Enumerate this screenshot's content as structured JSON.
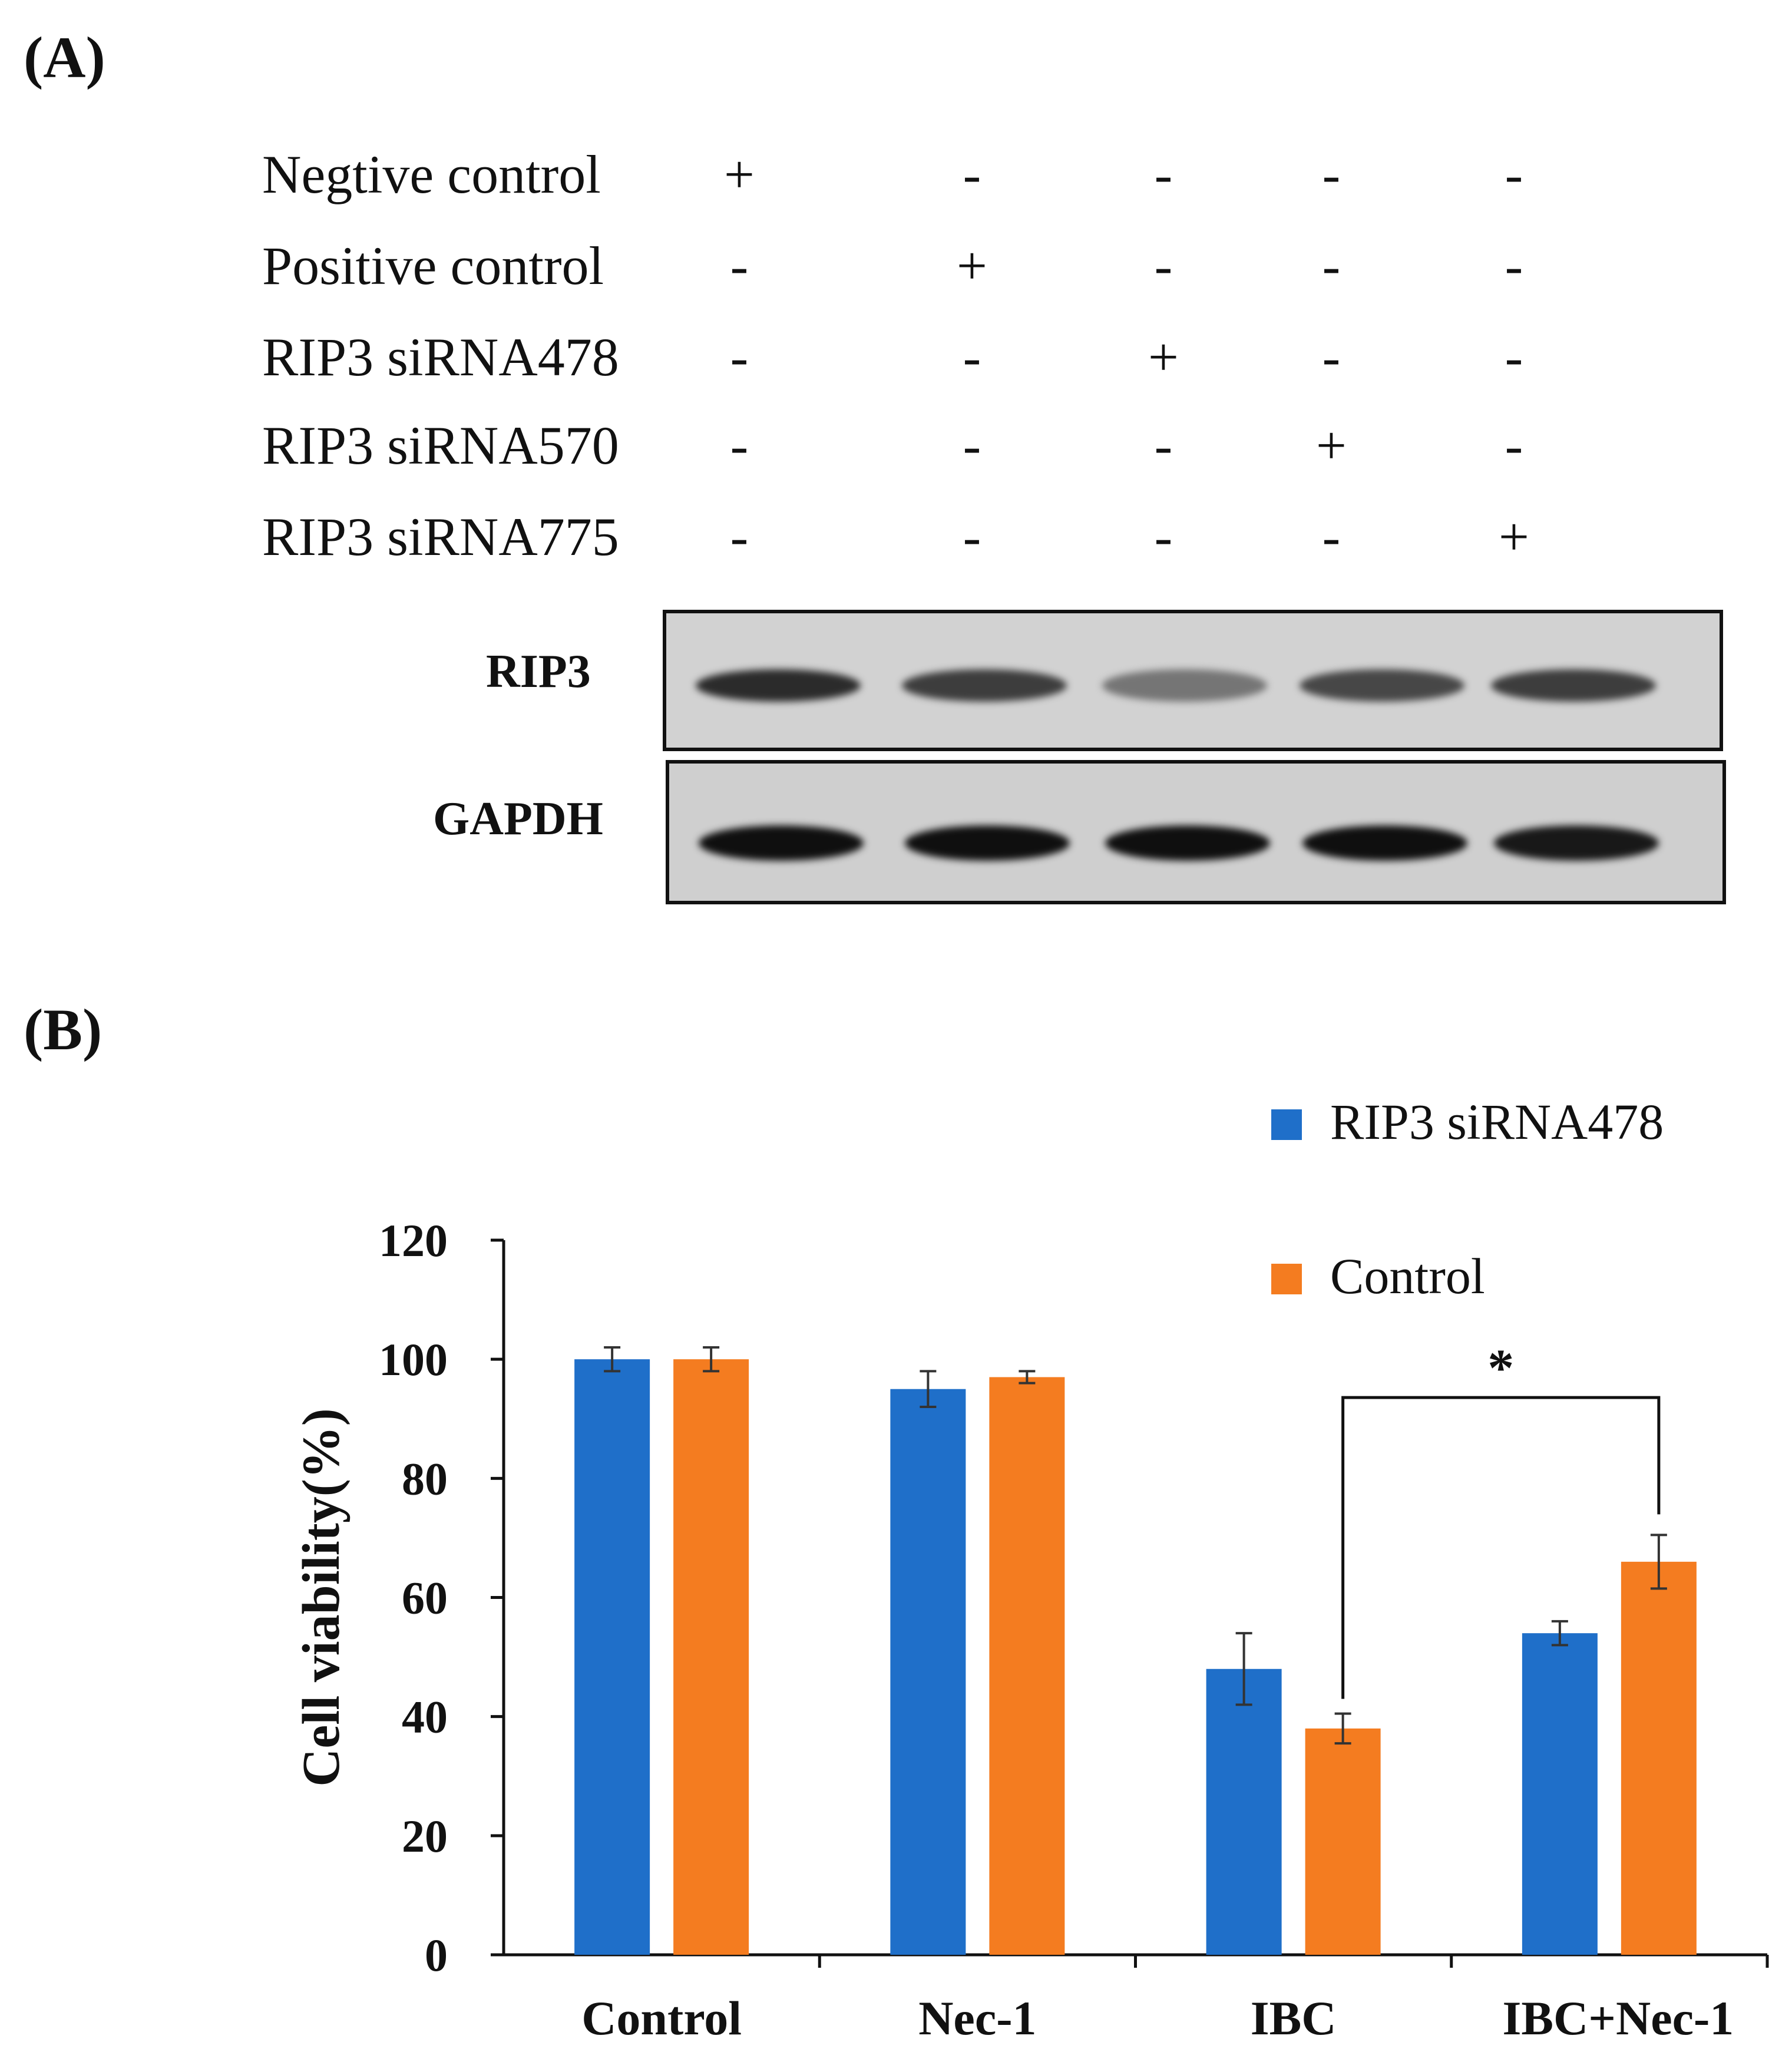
{
  "panel_a": {
    "label": "(A)",
    "conditions": [
      {
        "label": "Negtive control",
        "signs": [
          "+",
          "-",
          "-",
          "-",
          "-"
        ]
      },
      {
        "label": "Positive control",
        "signs": [
          "-",
          "+",
          "-",
          "-",
          "-"
        ]
      },
      {
        "label": "RIP3 siRNA478",
        "signs": [
          "-",
          "-",
          "+",
          "-",
          "-"
        ]
      },
      {
        "label": "RIP3 siRNA570",
        "signs": [
          "-",
          "-",
          "-",
          "+",
          "-"
        ]
      },
      {
        "label": "RIP3 siRNA775",
        "signs": [
          "-",
          "-",
          "-",
          "-",
          "+"
        ]
      }
    ],
    "blots": [
      {
        "label": "RIP3",
        "band_intensity": [
          0.85,
          0.75,
          0.45,
          0.7,
          0.75
        ]
      },
      {
        "label": "GAPDH",
        "band_intensity": [
          1.0,
          1.0,
          1.0,
          1.0,
          0.95
        ]
      }
    ]
  },
  "panel_b": {
    "label": "(B)",
    "significance_marker": "*"
  },
  "chart_data": {
    "type": "bar",
    "title": "",
    "xlabel": "",
    "ylabel": "Cell viability(%)",
    "ylim": [
      0,
      120
    ],
    "yticks": [
      0,
      20,
      40,
      60,
      80,
      100,
      120
    ],
    "categories": [
      "Control",
      "Nec-1",
      "IBC",
      "IBC+Nec-1"
    ],
    "series": [
      {
        "name": "RIP3 siRNA478",
        "color": "#1f6fc9",
        "values": [
          100,
          95,
          48,
          54
        ],
        "errors": [
          2,
          3,
          6,
          2
        ]
      },
      {
        "name": "Control",
        "color": "#f47c20",
        "values": [
          100,
          97,
          38,
          66
        ],
        "errors": [
          2,
          1,
          2.5,
          4.5
        ]
      }
    ],
    "legend_position": "top-right",
    "grid": false,
    "annotation": {
      "text": "*",
      "from": {
        "category": "IBC",
        "series": "Control"
      },
      "to": {
        "category": "IBC+Nec-1",
        "series": "Control"
      }
    }
  }
}
